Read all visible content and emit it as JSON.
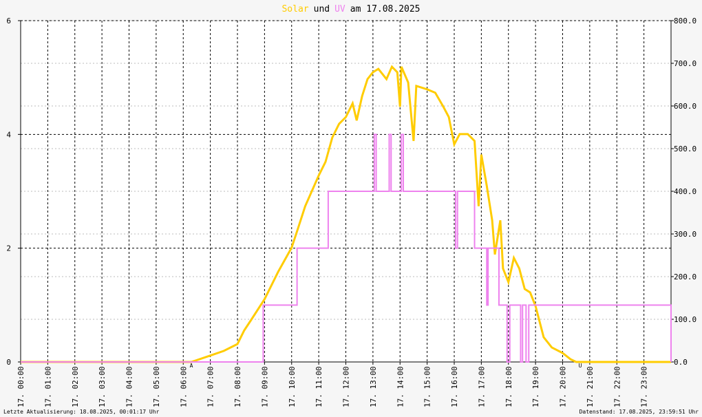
{
  "chart_data": {
    "type": "line",
    "title_parts": [
      {
        "text": "Solar",
        "color": "#ffcc00"
      },
      {
        "text": "und",
        "color": "#000000"
      },
      {
        "text": "UV",
        "color": "#ee82ee"
      },
      {
        "text": "am 17.08.2025",
        "color": "#000000"
      }
    ],
    "xlim": [
      0,
      24
    ],
    "xticks": [
      {
        "value": 0,
        "label": "17. 00:00"
      },
      {
        "value": 1,
        "label": "17. 01:00"
      },
      {
        "value": 2,
        "label": "17. 02:00"
      },
      {
        "value": 3,
        "label": "17. 03:00"
      },
      {
        "value": 4,
        "label": "17. 04:00"
      },
      {
        "value": 5,
        "label": "17. 05:00"
      },
      {
        "value": 6,
        "label": "17. 06:00"
      },
      {
        "value": 7,
        "label": "17. 07:00"
      },
      {
        "value": 8,
        "label": "17. 08:00"
      },
      {
        "value": 9,
        "label": "17. 09:00"
      },
      {
        "value": 10,
        "label": "17. 10:00"
      },
      {
        "value": 11,
        "label": "17. 11:00"
      },
      {
        "value": 12,
        "label": "17. 12:00"
      },
      {
        "value": 13,
        "label": "17. 13:00"
      },
      {
        "value": 14,
        "label": "17. 14:00"
      },
      {
        "value": 15,
        "label": "17. 15:00"
      },
      {
        "value": 16,
        "label": "17. 16:00"
      },
      {
        "value": 17,
        "label": "17. 17:00"
      },
      {
        "value": 18,
        "label": "17. 18:00"
      },
      {
        "value": 19,
        "label": "17. 19:00"
      },
      {
        "value": 20,
        "label": "17. 20:00"
      },
      {
        "value": 21,
        "label": "17. 21:00"
      },
      {
        "value": 22,
        "label": "17. 22:00"
      },
      {
        "value": 23,
        "label": "17. 23:00"
      }
    ],
    "ylim": [
      0,
      6
    ],
    "yticks": [
      0,
      2,
      4,
      6
    ],
    "y2lim": [
      0,
      800
    ],
    "y2ticks": [
      {
        "value": 0,
        "label": "0.0"
      },
      {
        "value": 100,
        "label": "100.0"
      },
      {
        "value": 200,
        "label": "200.0"
      },
      {
        "value": 300,
        "label": "300.0"
      },
      {
        "value": 400,
        "label": "400.0"
      },
      {
        "value": 500,
        "label": "500.0"
      },
      {
        "value": 600,
        "label": "600.0"
      },
      {
        "value": 700,
        "label": "700.0"
      },
      {
        "value": 800,
        "label": "800.0"
      }
    ],
    "grid": true,
    "series": [
      {
        "name": "Solar",
        "color": "#ffcc00",
        "axis": "y2",
        "step": false,
        "x": [
          0,
          6.3,
          7.0,
          7.5,
          8.0,
          8.25,
          8.5,
          9.0,
          9.5,
          10.0,
          10.25,
          10.5,
          11.0,
          11.25,
          11.5,
          11.75,
          12.0,
          12.25,
          12.4,
          12.6,
          12.8,
          13.0,
          13.2,
          13.5,
          13.7,
          13.9,
          14.0,
          14.05,
          14.3,
          14.5,
          14.6,
          15.0,
          15.3,
          15.6,
          15.8,
          16.0,
          16.2,
          16.5,
          16.75,
          16.9,
          17.0,
          17.2,
          17.4,
          17.5,
          17.7,
          17.8,
          18.0,
          18.2,
          18.4,
          18.6,
          18.8,
          19.0,
          19.3,
          19.6,
          20.0,
          20.3,
          20.5,
          20.7,
          24
        ],
        "values": [
          0,
          0,
          15,
          26,
          42,
          74,
          98,
          147,
          211,
          268,
          316,
          365,
          437,
          469,
          526,
          558,
          574,
          606,
          566,
          623,
          663,
          679,
          687,
          663,
          692,
          679,
          598,
          692,
          655,
          518,
          647,
          639,
          631,
          598,
          574,
          510,
          534,
          534,
          518,
          365,
          486,
          413,
          332,
          252,
          332,
          219,
          187,
          244,
          219,
          171,
          163,
          131,
          58,
          34,
          21,
          6,
          0,
          0,
          0
        ]
      },
      {
        "name": "UV",
        "color": "#ee82ee",
        "axis": "y",
        "step": true,
        "x": [
          0,
          8.95,
          10.2,
          11.35,
          13.05,
          13.12,
          13.6,
          13.67,
          14.05,
          14.12,
          16.05,
          16.12,
          16.75,
          17.2,
          17.25,
          17.65,
          17.95,
          18.05,
          18.45,
          18.52,
          18.65,
          18.75,
          24
        ],
        "values": [
          0,
          1,
          2,
          3,
          4,
          3,
          4,
          3,
          4,
          3,
          2,
          3,
          2,
          1,
          2,
          1,
          0,
          1,
          0,
          1,
          0,
          1,
          0
        ]
      }
    ],
    "annotations": [
      {
        "text": "A",
        "x": 6.3
      },
      {
        "text": "U",
        "x": 20.65
      }
    ],
    "footer_left": "Letzte Aktualisierung: 18.08.2025, 00:01:17 Uhr",
    "footer_right": "Datenstand: 17.08.2025, 23:59:51 Uhr"
  }
}
